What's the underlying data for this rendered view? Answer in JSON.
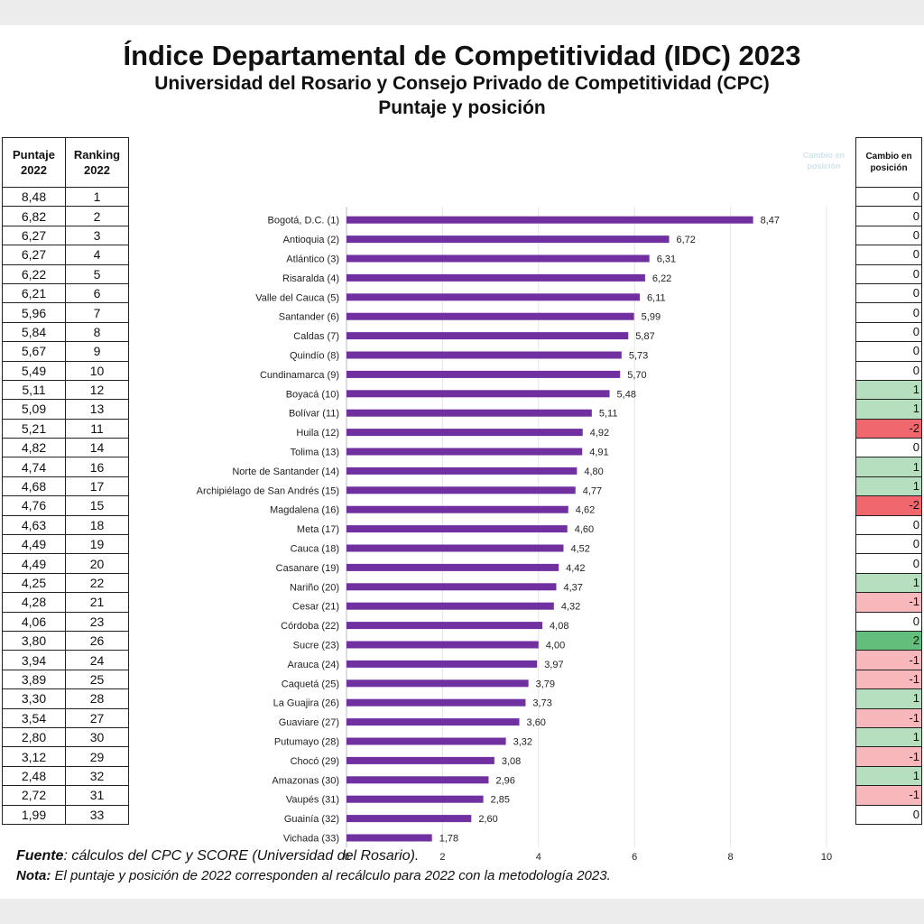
{
  "header": {
    "title": "Índice Departamental de Competitividad (IDC) 2023",
    "subtitle": "Universidad del Rosario y Consejo Privado de Competitividad (CPC)",
    "subtitle2": "Puntaje y posición"
  },
  "left_table": {
    "col1_header": [
      "Puntaje",
      "2022"
    ],
    "col2_header": [
      "Ranking",
      "2022"
    ],
    "rows": [
      {
        "score": "8,48",
        "rank": "1"
      },
      {
        "score": "6,82",
        "rank": "2"
      },
      {
        "score": "6,27",
        "rank": "3"
      },
      {
        "score": "6,27",
        "rank": "4"
      },
      {
        "score": "6,22",
        "rank": "5"
      },
      {
        "score": "6,21",
        "rank": "6"
      },
      {
        "score": "5,96",
        "rank": "7"
      },
      {
        "score": "5,84",
        "rank": "8"
      },
      {
        "score": "5,67",
        "rank": "9"
      },
      {
        "score": "5,49",
        "rank": "10"
      },
      {
        "score": "5,11",
        "rank": "12"
      },
      {
        "score": "5,09",
        "rank": "13"
      },
      {
        "score": "5,21",
        "rank": "11"
      },
      {
        "score": "4,82",
        "rank": "14"
      },
      {
        "score": "4,74",
        "rank": "16"
      },
      {
        "score": "4,68",
        "rank": "17"
      },
      {
        "score": "4,76",
        "rank": "15"
      },
      {
        "score": "4,63",
        "rank": "18"
      },
      {
        "score": "4,49",
        "rank": "19"
      },
      {
        "score": "4,49",
        "rank": "20"
      },
      {
        "score": "4,25",
        "rank": "22"
      },
      {
        "score": "4,28",
        "rank": "21"
      },
      {
        "score": "4,06",
        "rank": "23"
      },
      {
        "score": "3,80",
        "rank": "26"
      },
      {
        "score": "3,94",
        "rank": "24"
      },
      {
        "score": "3,89",
        "rank": "25"
      },
      {
        "score": "3,30",
        "rank": "28"
      },
      {
        "score": "3,54",
        "rank": "27"
      },
      {
        "score": "2,80",
        "rank": "30"
      },
      {
        "score": "3,12",
        "rank": "29"
      },
      {
        "score": "2,48",
        "rank": "32"
      },
      {
        "score": "2,72",
        "rank": "31"
      },
      {
        "score": "1,99",
        "rank": "33"
      }
    ]
  },
  "right_table": {
    "header": [
      "Cambio en",
      "posición"
    ],
    "ghost_label": [
      "Cambio en",
      "posición"
    ],
    "values": [
      0,
      0,
      0,
      0,
      0,
      0,
      0,
      0,
      0,
      0,
      1,
      1,
      -2,
      0,
      1,
      1,
      -2,
      0,
      0,
      0,
      1,
      -1,
      0,
      2,
      -1,
      -1,
      1,
      -1,
      1,
      -1,
      1,
      -1,
      0
    ],
    "colors": {
      "2": "#63be7b",
      "1": "#b5dfbf",
      "0": "#ffffff",
      "-1": "#f8b8bb",
      "-2": "#f0676d"
    }
  },
  "chart_data": {
    "type": "bar",
    "orientation": "horizontal",
    "categories": [
      "Bogotá, D.C. (1)",
      "Antioquia (2)",
      "Atlántico (3)",
      "Risaralda (4)",
      "Valle del Cauca (5)",
      "Santander (6)",
      "Caldas (7)",
      "Quindío (8)",
      "Cundinamarca (9)",
      "Boyacá (10)",
      "Bolívar (11)",
      "Huila (12)",
      "Tolima (13)",
      "Norte de Santander (14)",
      "Archipiélago de San Andrés (15)",
      "Magdalena (16)",
      "Meta (17)",
      "Cauca (18)",
      "Casanare (19)",
      "Nariño (20)",
      "Cesar (21)",
      "Córdoba (22)",
      "Sucre (23)",
      "Arauca (24)",
      "Caquetá (25)",
      "La Guajira (26)",
      "Guaviare (27)",
      "Putumayo (28)",
      "Chocó (29)",
      "Amazonas (30)",
      "Vaupés (31)",
      "Guainía (32)",
      "Vichada (33)"
    ],
    "values": [
      8.47,
      6.72,
      6.31,
      6.22,
      6.11,
      5.99,
      5.87,
      5.73,
      5.7,
      5.48,
      5.11,
      4.92,
      4.91,
      4.8,
      4.77,
      4.62,
      4.6,
      4.52,
      4.42,
      4.37,
      4.32,
      4.08,
      4.0,
      3.97,
      3.79,
      3.73,
      3.6,
      3.32,
      3.08,
      2.96,
      2.85,
      2.6,
      1.78
    ],
    "value_labels": [
      "8,47",
      "6,72",
      "6,31",
      "6,22",
      "6,11",
      "5,99",
      "5,87",
      "5,73",
      "5,70",
      "5,48",
      "5,11",
      "4,92",
      "4,91",
      "4,80",
      "4,77",
      "4,62",
      "4,60",
      "4,52",
      "4,42",
      "4,37",
      "4,32",
      "4,08",
      "4,00",
      "3,97",
      "3,79",
      "3,73",
      "3,60",
      "3,32",
      "3,08",
      "2,96",
      "2,85",
      "2,60",
      "1,78"
    ],
    "xlim": [
      0,
      10
    ],
    "xticks": [
      0,
      2,
      4,
      6,
      8,
      10
    ],
    "grid": true,
    "bar_color": "#7030a0"
  },
  "notes": {
    "fuente_label": "Fuente",
    "fuente_text": ": cálculos del CPC y SCORE (Universidad del Rosario).",
    "nota_label": "Nota:",
    "nota_text": " El puntaje y posición de 2022 corresponden al recálculo para 2022 con la metodología 2023."
  }
}
